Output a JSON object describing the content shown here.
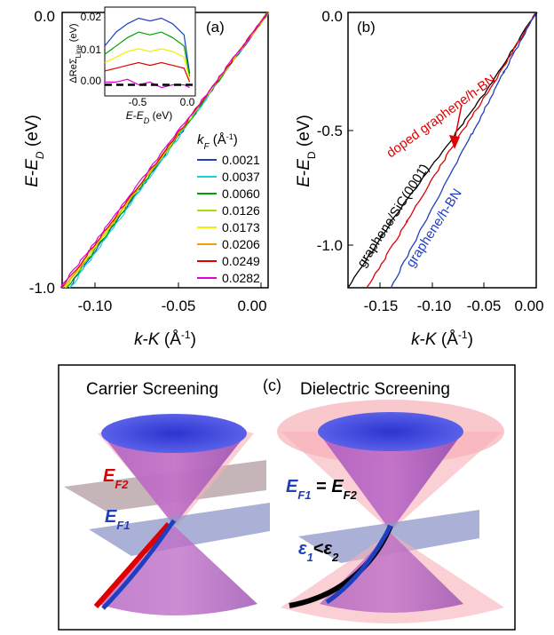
{
  "panel_a": {
    "label": "(a)",
    "xlabel": "k-K (Å⁻¹)",
    "ylabel": "E-E_D (eV)",
    "xticks": [
      "-0.10",
      "-0.05",
      "0.00"
    ],
    "yticks": [
      "0.0",
      "-1.0"
    ],
    "legend_title": "k_F (Å⁻¹)",
    "inset": {
      "ylabel": "ΔReΣ_Line (eV)",
      "xlabel": "E-E_D (eV)",
      "xticks": [
        "-0.5",
        "0.0"
      ],
      "yticks": [
        "0.02",
        "0.01",
        "0.00"
      ]
    }
  },
  "panel_b": {
    "label": "(b)",
    "xlabel": "k-K (Å⁻¹)",
    "ylabel": "E-E_D (eV)",
    "xticks": [
      "-0.15",
      "-0.10",
      "-0.05",
      "0.00"
    ],
    "yticks": [
      "0.0",
      "-0.5",
      "-1.0"
    ],
    "annotations": {
      "doped": "doped graphene/h-BN",
      "sic": "graphene/SiC(0001̄)",
      "hbn": "graphene/h-BN"
    }
  },
  "panel_c": {
    "label": "(c)",
    "left_title": "Carrier Screening",
    "right_title": "Dielectric Screening",
    "ef2": "E_F2",
    "ef1": "E_F1",
    "ef_equal": "E_F1 = E_F2",
    "eps": "ε_1<ε_2"
  },
  "chart_data": [
    {
      "type": "line",
      "title": "",
      "xlabel": "k-K (Å⁻¹)",
      "ylabel": "E-E_D (eV)",
      "xlim": [
        -0.125,
        0.0
      ],
      "ylim": [
        -1.0,
        0.0
      ],
      "legend_placement": "right",
      "series": [
        {
          "name": "0.0021",
          "color": "#1f3fbf",
          "x": [
            -0.121,
            0.0
          ],
          "y": [
            -1.0,
            0.0
          ]
        },
        {
          "name": "0.0037",
          "color": "#14d4d4",
          "x": [
            -0.12,
            0.0
          ],
          "y": [
            -1.0,
            0.0
          ]
        },
        {
          "name": "0.0060",
          "color": "#00a000",
          "x": [
            -0.122,
            0.0
          ],
          "y": [
            -1.0,
            0.0
          ]
        },
        {
          "name": "0.0126",
          "color": "#a8e000",
          "x": [
            -0.123,
            0.0
          ],
          "y": [
            -1.0,
            0.0
          ]
        },
        {
          "name": "0.0173",
          "color": "#f0f000",
          "x": [
            -0.124,
            0.0
          ],
          "y": [
            -1.0,
            0.0
          ]
        },
        {
          "name": "0.0206",
          "color": "#f0a000",
          "x": [
            -0.124,
            0.0
          ],
          "y": [
            -1.0,
            0.0
          ]
        },
        {
          "name": "0.0249",
          "color": "#e00000",
          "x": [
            -0.125,
            0.0
          ],
          "y": [
            -1.0,
            0.0
          ]
        },
        {
          "name": "0.0282",
          "color": "#e000e0",
          "x": [
            -0.126,
            0.0
          ],
          "y": [
            -1.0,
            0.0
          ]
        }
      ]
    },
    {
      "type": "line",
      "title": "",
      "xlabel": "E-E_D (eV)",
      "ylabel": "ΔReΣ_Line (eV)",
      "xlim": [
        -0.75,
        0.05
      ],
      "ylim": [
        -0.004,
        0.028
      ],
      "x": [
        -0.75,
        -0.65,
        -0.55,
        -0.45,
        -0.35,
        -0.25,
        -0.15,
        -0.05,
        0.0
      ],
      "series": [
        {
          "color": "#1f3fbf",
          "values": [
            0.014,
            0.019,
            0.022,
            0.024,
            0.023,
            0.024,
            0.022,
            0.018,
            0.004
          ]
        },
        {
          "color": "#00a000",
          "values": [
            0.011,
            0.014,
            0.017,
            0.019,
            0.018,
            0.019,
            0.017,
            0.014,
            0.003
          ]
        },
        {
          "color": "#f0f000",
          "values": [
            0.008,
            0.01,
            0.012,
            0.013,
            0.012,
            0.013,
            0.012,
            0.01,
            0.002
          ]
        },
        {
          "color": "#e00000",
          "values": [
            0.005,
            0.006,
            0.007,
            0.008,
            0.007,
            0.008,
            0.007,
            0.006,
            0.001
          ]
        },
        {
          "color": "#e000e0",
          "values": [
            0.001,
            0.001,
            0.002,
            0.0,
            0.001,
            -0.001,
            0.0,
            0.0,
            -0.001
          ]
        }
      ],
      "reference_line": 0.0
    },
    {
      "type": "line",
      "title": "",
      "xlabel": "k-K (Å⁻¹)",
      "ylabel": "E-E_D (eV)",
      "xlim": [
        -0.175,
        0.0
      ],
      "ylim": [
        -1.2,
        0.0
      ],
      "series": [
        {
          "name": "graphene/SiC(0001̄)",
          "color": "#000000",
          "x": [
            -0.175,
            -0.13,
            -0.08,
            -0.04,
            0.0
          ],
          "y": [
            -1.2,
            -0.88,
            -0.56,
            -0.3,
            0.0
          ]
        },
        {
          "name": "doped graphene/h-BN",
          "color": "#e00000",
          "x": [
            -0.157,
            -0.12,
            -0.08,
            -0.04,
            0.0
          ],
          "y": [
            -1.2,
            -0.91,
            -0.6,
            -0.31,
            0.0
          ]
        },
        {
          "name": "graphene/h-BN",
          "color": "#1f3fbf",
          "x": [
            -0.135,
            -0.1,
            -0.06,
            -0.03,
            0.0
          ],
          "y": [
            -1.2,
            -0.88,
            -0.53,
            -0.26,
            0.0
          ]
        }
      ]
    }
  ]
}
